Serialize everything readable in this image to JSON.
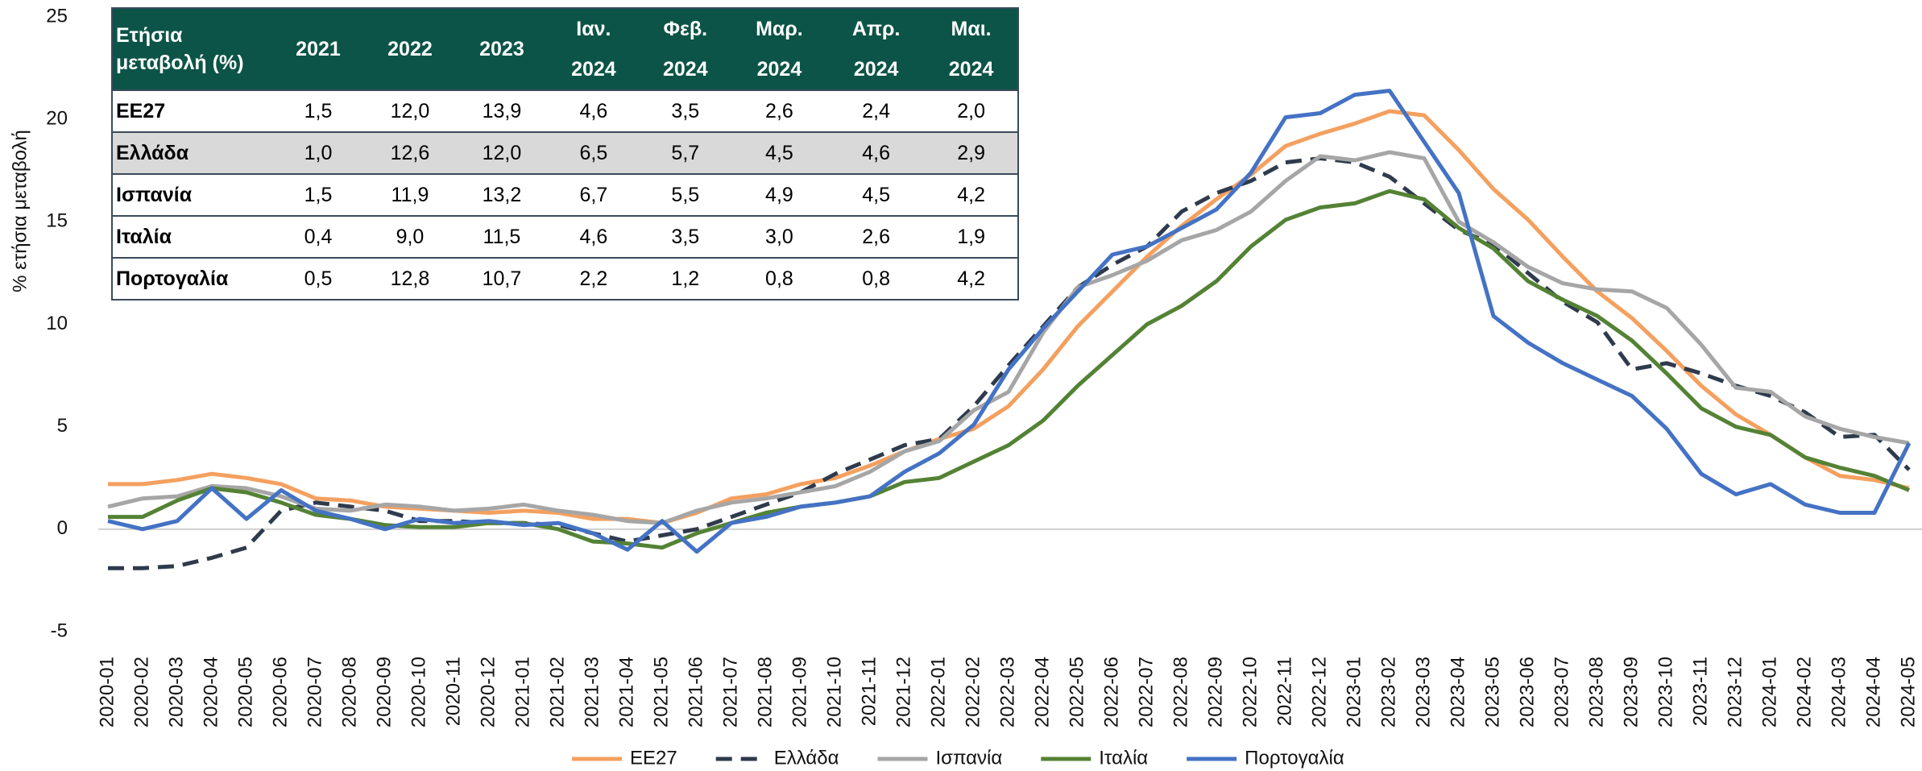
{
  "chart_data": {
    "type": "line",
    "y_label": "% ετήσια μεταβολή",
    "x": [
      "2020-01",
      "2020-02",
      "2020-03",
      "2020-04",
      "2020-05",
      "2020-06",
      "2020-07",
      "2020-08",
      "2020-09",
      "2020-10",
      "2020-11",
      "2020-12",
      "2021-01",
      "2021-02",
      "2021-03",
      "2021-04",
      "2021-05",
      "2021-06",
      "2021-07",
      "2021-08",
      "2021-09",
      "2021-10",
      "2021-11",
      "2021-12",
      "2022-01",
      "2022-02",
      "2022-03",
      "2022-04",
      "2022-05",
      "2022-06",
      "2022-07",
      "2022-08",
      "2022-09",
      "2022-10",
      "2022-11",
      "2022-12",
      "2023-01",
      "2023-02",
      "2023-03",
      "2023-04",
      "2023-05",
      "2023-06",
      "2023-07",
      "2023-08",
      "2023-09",
      "2023-10",
      "2023-11",
      "2023-12",
      "2024-01",
      "2024-02",
      "2024-03",
      "2024-04",
      "2024-05"
    ],
    "series": [
      {
        "name": "ΕΕ27",
        "color": "#f4a05f",
        "dash": false,
        "values": [
          2.2,
          2.2,
          2.4,
          2.7,
          2.5,
          2.2,
          1.5,
          1.4,
          1.1,
          1.0,
          0.9,
          0.8,
          0.9,
          0.8,
          0.5,
          0.5,
          0.3,
          0.8,
          1.5,
          1.7,
          2.2,
          2.5,
          3.1,
          3.8,
          4.4,
          4.9,
          6.0,
          7.8,
          9.9,
          11.6,
          13.3,
          14.8,
          16.1,
          17.3,
          18.7,
          19.3,
          19.8,
          20.4,
          20.2,
          18.5,
          16.6,
          15.1,
          13.3,
          11.6,
          10.3,
          8.7,
          7.0,
          5.6,
          4.6,
          3.5,
          2.6,
          2.4,
          2.0
        ]
      },
      {
        "name": "Ελλάδα",
        "color": "#2f3b4c",
        "dash": true,
        "values": [
          -1.9,
          -1.9,
          -1.8,
          -1.4,
          -0.9,
          0.9,
          1.3,
          1.1,
          0.9,
          0.4,
          0.4,
          0.3,
          0.3,
          0.2,
          -0.2,
          -0.6,
          -0.3,
          0.0,
          0.6,
          1.2,
          1.8,
          2.7,
          3.4,
          4.1,
          4.4,
          6.0,
          8.0,
          9.9,
          11.8,
          12.9,
          13.8,
          15.5,
          16.4,
          17.0,
          17.9,
          18.1,
          17.9,
          17.2,
          15.9,
          14.6,
          13.9,
          12.5,
          11.1,
          10.1,
          7.8,
          8.1,
          7.6,
          7.0,
          6.5,
          5.7,
          4.5,
          4.6,
          2.9
        ]
      },
      {
        "name": "Ισπανία",
        "color": "#a6a6a6",
        "dash": false,
        "values": [
          1.1,
          1.5,
          1.6,
          2.1,
          2.0,
          1.6,
          1.0,
          0.9,
          1.2,
          1.1,
          0.9,
          1.0,
          1.2,
          0.9,
          0.7,
          0.4,
          0.3,
          0.9,
          1.3,
          1.5,
          1.8,
          2.1,
          2.8,
          3.8,
          4.3,
          5.8,
          6.7,
          9.6,
          11.8,
          12.4,
          13.1,
          14.1,
          14.6,
          15.5,
          17.0,
          18.2,
          18.0,
          18.4,
          18.1,
          15.0,
          14.0,
          12.8,
          12.0,
          11.7,
          11.6,
          10.8,
          9.0,
          6.9,
          6.7,
          5.5,
          4.9,
          4.5,
          4.2
        ]
      },
      {
        "name": "Ιταλία",
        "color": "#548235",
        "dash": false,
        "values": [
          0.6,
          0.6,
          1.4,
          2.0,
          1.8,
          1.3,
          0.7,
          0.5,
          0.2,
          0.1,
          0.1,
          0.3,
          0.3,
          0.0,
          -0.6,
          -0.7,
          -0.9,
          -0.2,
          0.3,
          0.8,
          1.1,
          1.3,
          1.6,
          2.3,
          2.5,
          3.3,
          4.1,
          5.3,
          7.0,
          8.5,
          10.0,
          10.9,
          12.1,
          13.8,
          15.1,
          15.7,
          15.9,
          16.5,
          16.1,
          14.7,
          13.7,
          12.1,
          11.2,
          10.4,
          9.2,
          7.6,
          5.9,
          5.0,
          4.6,
          3.5,
          3.0,
          2.6,
          1.9
        ]
      },
      {
        "name": "Πορτογαλία",
        "color": "#4472c4",
        "dash": false,
        "values": [
          0.4,
          0.0,
          0.4,
          2.0,
          0.5,
          1.9,
          0.9,
          0.5,
          0.0,
          0.5,
          0.3,
          0.4,
          0.2,
          0.3,
          -0.2,
          -1.0,
          0.4,
          -1.1,
          0.3,
          0.6,
          1.1,
          1.3,
          1.6,
          2.8,
          3.7,
          5.1,
          7.8,
          9.8,
          11.6,
          13.4,
          13.8,
          14.7,
          15.6,
          17.4,
          20.1,
          20.3,
          21.2,
          21.4,
          18.9,
          16.4,
          10.4,
          9.1,
          8.1,
          7.3,
          6.5,
          4.9,
          2.7,
          1.7,
          2.2,
          1.2,
          0.8,
          0.8,
          4.2
        ]
      }
    ],
    "ylim": [
      -5,
      25
    ],
    "yticks": [
      -5,
      0,
      5,
      10,
      15,
      20,
      25
    ],
    "grid": false,
    "legend": "bottom"
  },
  "table": {
    "header": [
      "Ετήσια μεταβολή (%)",
      "2021",
      "2022",
      "2023",
      "Ιαν. 2024",
      "Φεβ. 2024",
      "Μαρ. 2024",
      "Απρ. 2024",
      "Μαι. 2024"
    ],
    "rows": [
      [
        "ΕΕ27",
        "1,5",
        "12,0",
        "13,9",
        "4,6",
        "3,5",
        "2,6",
        "2,4",
        "2,0"
      ],
      [
        "Ελλάδα",
        "1,0",
        "12,6",
        "12,0",
        "6,5",
        "5,7",
        "4,5",
        "4,6",
        "2,9"
      ],
      [
        "Ισπανία",
        "1,5",
        "11,9",
        "13,2",
        "6,7",
        "5,5",
        "4,9",
        "4,5",
        "4,2"
      ],
      [
        "Ιταλία",
        "0,4",
        "9,0",
        "11,5",
        "4,6",
        "3,5",
        "3,0",
        "2,6",
        "1,9"
      ],
      [
        "Πορτογαλία",
        "0,5",
        "12,8",
        "10,7",
        "2,2",
        "1,2",
        "0,8",
        "0,8",
        "4,2"
      ]
    ]
  }
}
